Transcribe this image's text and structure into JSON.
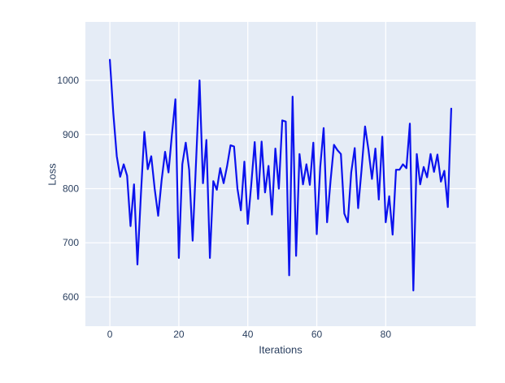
{
  "figure": {
    "page_background": "#ffffff"
  },
  "chart_data": {
    "type": "line",
    "title": "",
    "xlabel": "Iterations",
    "ylabel": "Loss",
    "legend": "none",
    "grid": true,
    "plot_bg": "#e5ecf6",
    "grid_color": "#ffffff",
    "text_color": "#2a3f5f",
    "line_color": "#0b12ee",
    "x_ticks": [
      0,
      20,
      40,
      60,
      80
    ],
    "y_ticks": [
      600,
      700,
      800,
      900,
      1000
    ],
    "xlim": [
      -7.1,
      106.1
    ],
    "ylim": [
      546,
      1108
    ],
    "x": [
      0,
      1,
      2,
      3,
      4,
      5,
      6,
      7,
      8,
      9,
      10,
      11,
      12,
      13,
      14,
      15,
      16,
      17,
      18,
      19,
      20,
      21,
      22,
      23,
      24,
      25,
      26,
      27,
      28,
      29,
      30,
      31,
      32,
      33,
      34,
      35,
      36,
      37,
      38,
      39,
      40,
      41,
      42,
      43,
      44,
      45,
      46,
      47,
      48,
      49,
      50,
      51,
      52,
      53,
      54,
      55,
      56,
      57,
      58,
      59,
      60,
      61,
      62,
      63,
      64,
      65,
      66,
      67,
      68,
      69,
      70,
      71,
      72,
      73,
      74,
      75,
      76,
      77,
      78,
      79,
      80,
      81,
      82,
      83,
      84,
      85,
      86,
      87,
      88,
      89,
      90,
      91,
      92,
      93,
      94,
      95,
      96,
      97,
      98,
      99
    ],
    "values": [
      1038,
      940,
      860,
      822,
      845,
      824,
      731,
      808,
      660,
      790,
      905,
      836,
      860,
      800,
      750,
      815,
      868,
      830,
      900,
      965,
      672,
      845,
      885,
      835,
      704,
      850,
      1000,
      810,
      890,
      672,
      814,
      798,
      838,
      810,
      842,
      880,
      878,
      800,
      760,
      850,
      735,
      808,
      886,
      781,
      887,
      793,
      842,
      752,
      874,
      800,
      926,
      924,
      640,
      970,
      676,
      864,
      808,
      845,
      807,
      885,
      716,
      840,
      912,
      738,
      815,
      881,
      871,
      864,
      754,
      738,
      830,
      875,
      764,
      835,
      915,
      872,
      818,
      874,
      780,
      896,
      738,
      786,
      715,
      835,
      835,
      845,
      838,
      920,
      612,
      864,
      808,
      840,
      821,
      864,
      831,
      863,
      813,
      833,
      766,
      948
    ]
  }
}
